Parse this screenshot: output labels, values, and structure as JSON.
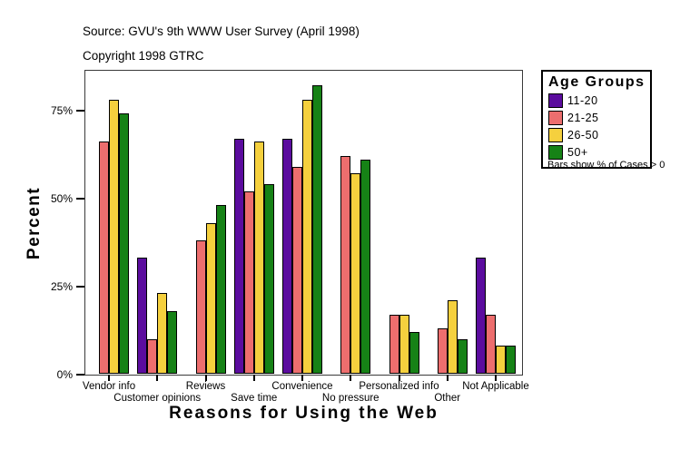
{
  "header": {
    "source": "Source: GVU's 9th WWW User Survey (April 1998)",
    "copyright": "Copyright 1998 GTRC"
  },
  "chart_data": {
    "type": "bar",
    "title": "",
    "xlabel": "Reasons for Using the Web",
    "ylabel": "Percent",
    "categories": [
      "Vendor info",
      "Customer opinions",
      "Reviews",
      "Save time",
      "Convenience",
      "No pressure",
      "Personalized info",
      "Other",
      "Not Applicable"
    ],
    "series": [
      {
        "name": "11-20",
        "color": "#5B0C9E",
        "values": [
          0,
          33,
          0,
          67,
          67,
          0,
          0,
          0,
          33
        ]
      },
      {
        "name": "21-25",
        "color": "#ED6E6E",
        "values": [
          66,
          10,
          38,
          52,
          59,
          62,
          17,
          13,
          17
        ]
      },
      {
        "name": "26-50",
        "color": "#F5D03E",
        "values": [
          78,
          23,
          43,
          66,
          78,
          57,
          17,
          21,
          8
        ]
      },
      {
        "name": "50+",
        "color": "#168216",
        "values": [
          74,
          18,
          48,
          54,
          82,
          61,
          12,
          10,
          8
        ]
      }
    ],
    "y_ticks": [
      {
        "value": 0,
        "label": "0%"
      },
      {
        "value": 25,
        "label": "25%"
      },
      {
        "value": 50,
        "label": "50%"
      },
      {
        "value": 75,
        "label": "75%"
      }
    ],
    "ylim": [
      0,
      86
    ],
    "grid": false,
    "legend_position": "right",
    "note": "bars with value 0 are not drawn"
  },
  "legend": {
    "title": "Age Groups",
    "items": [
      {
        "label": "11-20",
        "color": "#5B0C9E"
      },
      {
        "label": "21-25",
        "color": "#ED6E6E"
      },
      {
        "label": "26-50",
        "color": "#F5D03E"
      },
      {
        "label": "50+",
        "color": "#168216"
      }
    ]
  },
  "footnote": "Bars show % of Cases > 0",
  "colors": {
    "frame": "#3a3a3a",
    "bar_border": "#000000",
    "background": "#ffffff"
  }
}
